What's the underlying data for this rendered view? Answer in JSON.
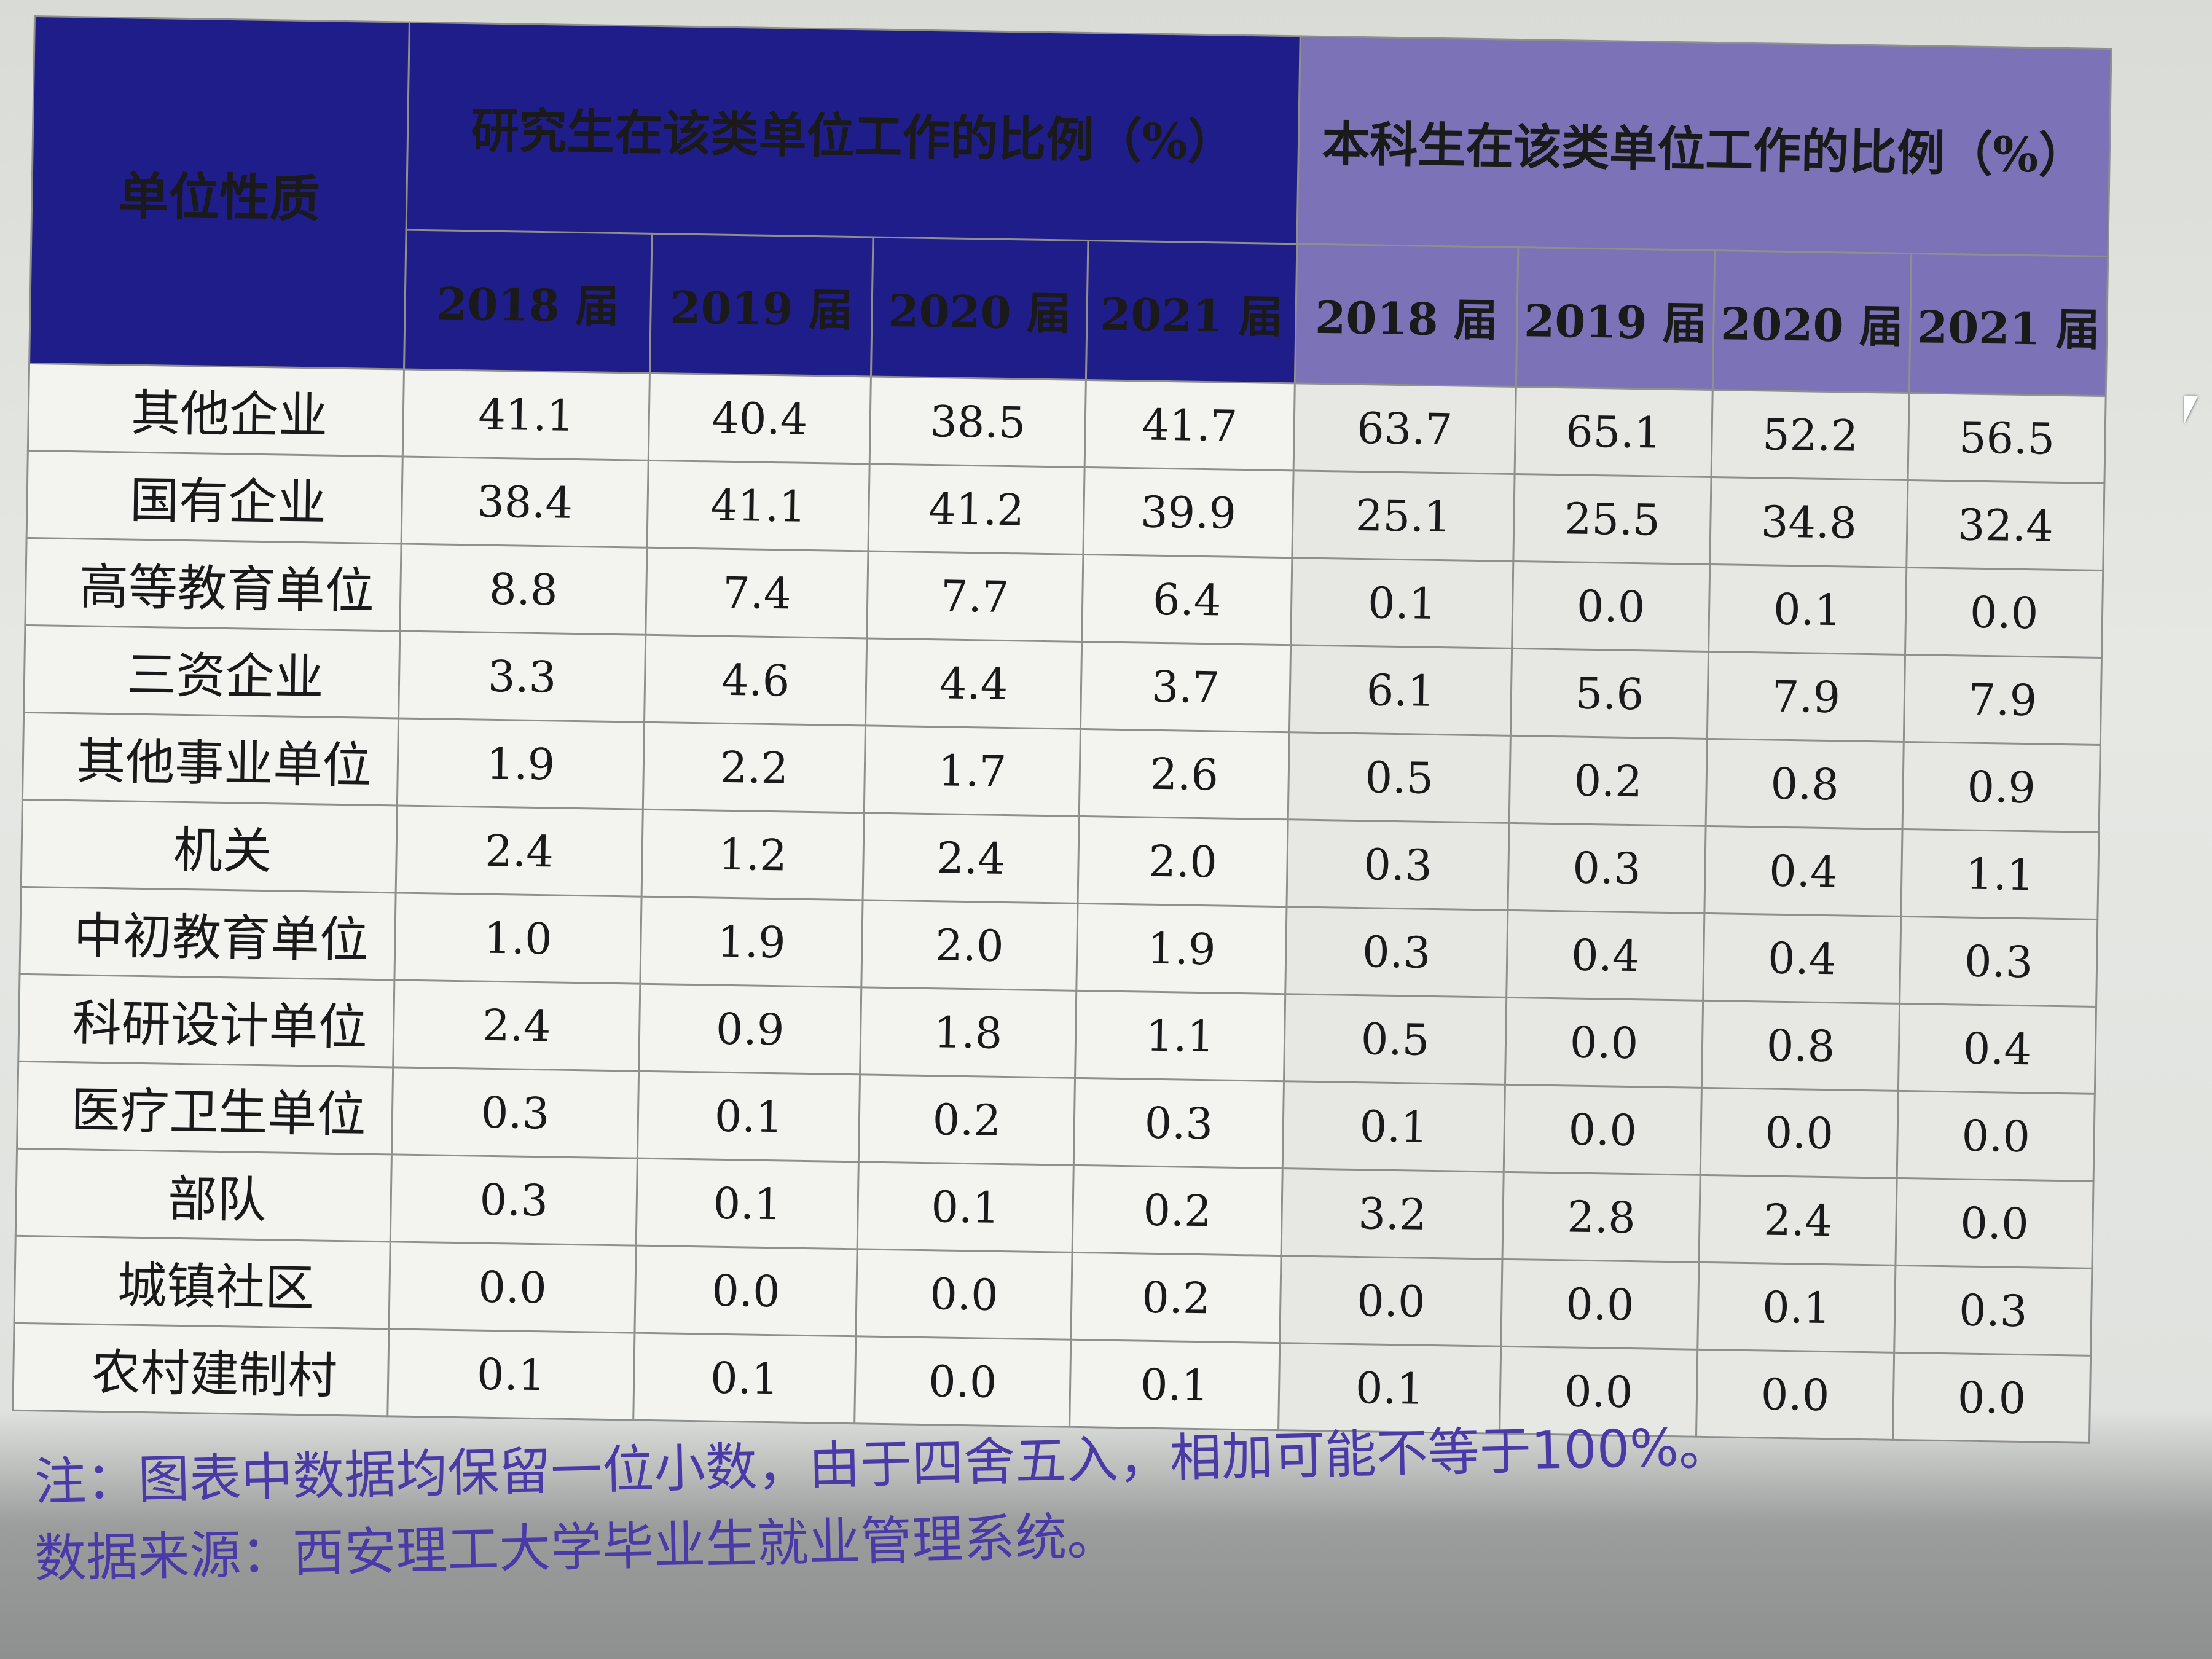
{
  "table": {
    "unit_header": "单位性质",
    "graduate_header": "研究生在该类单位工作的比例（%）",
    "undergrad_header": "本科生在该类单位工作的比例（%）",
    "years": [
      "2018 届",
      "2019 届",
      "2020 届",
      "2021 届"
    ],
    "colors": {
      "graduate_header_bg": "#1f1d8a",
      "undergrad_header_bg": "#7b72b8",
      "note_text": "#4a3aa8"
    },
    "rows": [
      {
        "label": "其他企业",
        "grad": [
          "41.1",
          "40.4",
          "38.5",
          "41.7"
        ],
        "ug": [
          "63.7",
          "65.1",
          "52.2",
          "56.5"
        ]
      },
      {
        "label": "国有企业",
        "grad": [
          "38.4",
          "41.1",
          "41.2",
          "39.9"
        ],
        "ug": [
          "25.1",
          "25.5",
          "34.8",
          "32.4"
        ]
      },
      {
        "label": "高等教育单位",
        "grad": [
          "8.8",
          "7.4",
          "7.7",
          "6.4"
        ],
        "ug": [
          "0.1",
          "0.0",
          "0.1",
          "0.0"
        ]
      },
      {
        "label": "三资企业",
        "grad": [
          "3.3",
          "4.6",
          "4.4",
          "3.7"
        ],
        "ug": [
          "6.1",
          "5.6",
          "7.9",
          "7.9"
        ]
      },
      {
        "label": "其他事业单位",
        "grad": [
          "1.9",
          "2.2",
          "1.7",
          "2.6"
        ],
        "ug": [
          "0.5",
          "0.2",
          "0.8",
          "0.9"
        ]
      },
      {
        "label": "机关",
        "grad": [
          "2.4",
          "1.2",
          "2.4",
          "2.0"
        ],
        "ug": [
          "0.3",
          "0.3",
          "0.4",
          "1.1"
        ]
      },
      {
        "label": "中初教育单位",
        "grad": [
          "1.0",
          "1.9",
          "2.0",
          "1.9"
        ],
        "ug": [
          "0.3",
          "0.4",
          "0.4",
          "0.3"
        ]
      },
      {
        "label": "科研设计单位",
        "grad": [
          "2.4",
          "0.9",
          "1.8",
          "1.1"
        ],
        "ug": [
          "0.5",
          "0.0",
          "0.8",
          "0.4"
        ]
      },
      {
        "label": "医疗卫生单位",
        "grad": [
          "0.3",
          "0.1",
          "0.2",
          "0.3"
        ],
        "ug": [
          "0.1",
          "0.0",
          "0.0",
          "0.0"
        ]
      },
      {
        "label": "部队",
        "grad": [
          "0.3",
          "0.1",
          "0.1",
          "0.2"
        ],
        "ug": [
          "3.2",
          "2.8",
          "2.4",
          "0.0"
        ]
      },
      {
        "label": "城镇社区",
        "grad": [
          "0.0",
          "0.0",
          "0.0",
          "0.2"
        ],
        "ug": [
          "0.0",
          "0.0",
          "0.1",
          "0.3"
        ]
      },
      {
        "label": "农村建制村",
        "grad": [
          "0.1",
          "0.1",
          "0.0",
          "0.1"
        ],
        "ug": [
          "0.1",
          "0.0",
          "0.0",
          "0.0"
        ]
      }
    ]
  },
  "notes": {
    "note": "注：图表中数据均保留一位小数，由于四舍五入，相加可能不等于100%。",
    "source": "数据来源：西安理工大学毕业生就业管理系统。"
  }
}
